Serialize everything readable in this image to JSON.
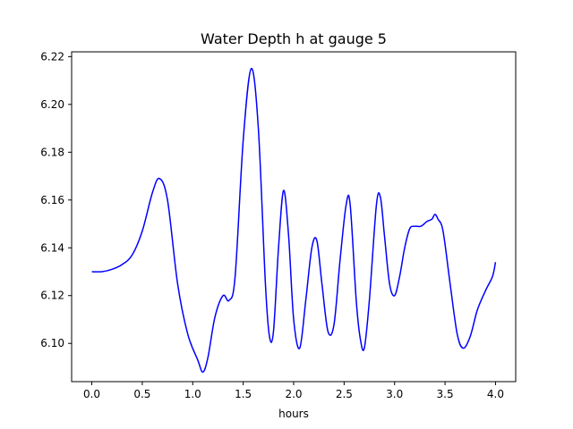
{
  "chart_data": {
    "type": "line",
    "title": "Water Depth h at gauge 5",
    "xlabel": "hours",
    "ylabel": "",
    "xlim": [
      -0.2,
      4.2
    ],
    "ylim": [
      6.084,
      6.222
    ],
    "xticks": [
      0.0,
      0.5,
      1.0,
      1.5,
      2.0,
      2.5,
      3.0,
      3.5,
      4.0
    ],
    "xtick_labels": [
      "0.0",
      "0.5",
      "1.0",
      "1.5",
      "2.0",
      "2.5",
      "3.0",
      "3.5",
      "4.0"
    ],
    "yticks": [
      6.1,
      6.12,
      6.14,
      6.16,
      6.18,
      6.2,
      6.22
    ],
    "ytick_labels": [
      "6.10",
      "6.12",
      "6.14",
      "6.16",
      "6.18",
      "6.20",
      "6.22"
    ],
    "grid": false,
    "series": [
      {
        "name": "",
        "color": "#0000ff",
        "x": [
          0.0,
          0.1,
          0.2,
          0.3,
          0.4,
          0.5,
          0.6,
          0.67,
          0.75,
          0.85,
          0.95,
          1.05,
          1.1,
          1.15,
          1.22,
          1.3,
          1.36,
          1.42,
          1.5,
          1.58,
          1.65,
          1.72,
          1.76,
          1.8,
          1.85,
          1.9,
          1.95,
          2.0,
          2.06,
          2.12,
          2.18,
          2.23,
          2.28,
          2.34,
          2.4,
          2.46,
          2.52,
          2.56,
          2.62,
          2.66,
          2.7,
          2.75,
          2.82,
          2.86,
          2.9,
          2.95,
          3.0,
          3.05,
          3.1,
          3.15,
          3.2,
          3.26,
          3.32,
          3.37,
          3.4,
          3.43,
          3.48,
          3.55,
          3.62,
          3.68,
          3.75,
          3.82,
          3.9,
          3.97,
          4.0
        ],
        "y": [
          6.13,
          6.13,
          6.131,
          6.133,
          6.137,
          6.147,
          6.163,
          6.169,
          6.16,
          6.125,
          6.104,
          6.093,
          6.088,
          6.094,
          6.111,
          6.12,
          6.118,
          6.128,
          6.185,
          6.215,
          6.19,
          6.125,
          6.103,
          6.105,
          6.14,
          6.164,
          6.145,
          6.11,
          6.098,
          6.118,
          6.14,
          6.143,
          6.125,
          6.105,
          6.108,
          6.135,
          6.158,
          6.158,
          6.118,
          6.102,
          6.098,
          6.118,
          6.158,
          6.161,
          6.145,
          6.125,
          6.12,
          6.128,
          6.14,
          6.148,
          6.149,
          6.149,
          6.151,
          6.152,
          6.154,
          6.152,
          6.147,
          6.125,
          6.104,
          6.098,
          6.103,
          6.114,
          6.122,
          6.128,
          6.134
        ]
      }
    ]
  }
}
